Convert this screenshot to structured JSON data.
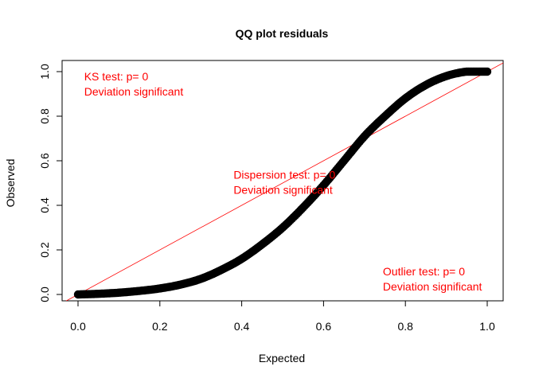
{
  "chart_data": {
    "type": "scatter",
    "title": "QQ plot residuals",
    "xlabel": "Expected",
    "ylabel": "Observed",
    "xlim": [
      0,
      1
    ],
    "ylim": [
      0,
      1
    ],
    "x_ticks": [
      "0.0",
      "0.2",
      "0.4",
      "0.6",
      "0.8",
      "1.0"
    ],
    "y_ticks": [
      "0.0",
      "0.2",
      "0.4",
      "0.6",
      "0.8",
      "1.0"
    ],
    "grid": false,
    "reference_line": {
      "slope": 1,
      "intercept": 0,
      "color": "#ff0000"
    },
    "point_color": "#000000",
    "curve_points": [
      {
        "x": 0.0,
        "y": 0.0
      },
      {
        "x": 0.05,
        "y": 0.003
      },
      {
        "x": 0.1,
        "y": 0.008
      },
      {
        "x": 0.15,
        "y": 0.016
      },
      {
        "x": 0.2,
        "y": 0.027
      },
      {
        "x": 0.25,
        "y": 0.044
      },
      {
        "x": 0.3,
        "y": 0.07
      },
      {
        "x": 0.35,
        "y": 0.11
      },
      {
        "x": 0.4,
        "y": 0.16
      },
      {
        "x": 0.45,
        "y": 0.225
      },
      {
        "x": 0.5,
        "y": 0.3
      },
      {
        "x": 0.55,
        "y": 0.39
      },
      {
        "x": 0.6,
        "y": 0.49
      },
      {
        "x": 0.65,
        "y": 0.6
      },
      {
        "x": 0.7,
        "y": 0.71
      },
      {
        "x": 0.75,
        "y": 0.8
      },
      {
        "x": 0.8,
        "y": 0.88
      },
      {
        "x": 0.85,
        "y": 0.94
      },
      {
        "x": 0.9,
        "y": 0.98
      },
      {
        "x": 0.95,
        "y": 1.0
      },
      {
        "x": 1.0,
        "y": 1.0
      }
    ],
    "annotations": [
      {
        "id": "ks",
        "lines": [
          "KS test: p= 0",
          "Deviation  significant"
        ],
        "x": 0.015,
        "y": 0.96,
        "color": "#ff0000"
      },
      {
        "id": "dispersion",
        "lines": [
          "Dispersion test: p= 0",
          "Deviation  significant"
        ],
        "x": 0.38,
        "y": 0.52,
        "color": "#ff0000"
      },
      {
        "id": "outlier",
        "lines": [
          "Outlier test: p= 0",
          "Deviation  significant"
        ],
        "x": 0.745,
        "y": 0.085,
        "color": "#ff0000"
      }
    ]
  }
}
